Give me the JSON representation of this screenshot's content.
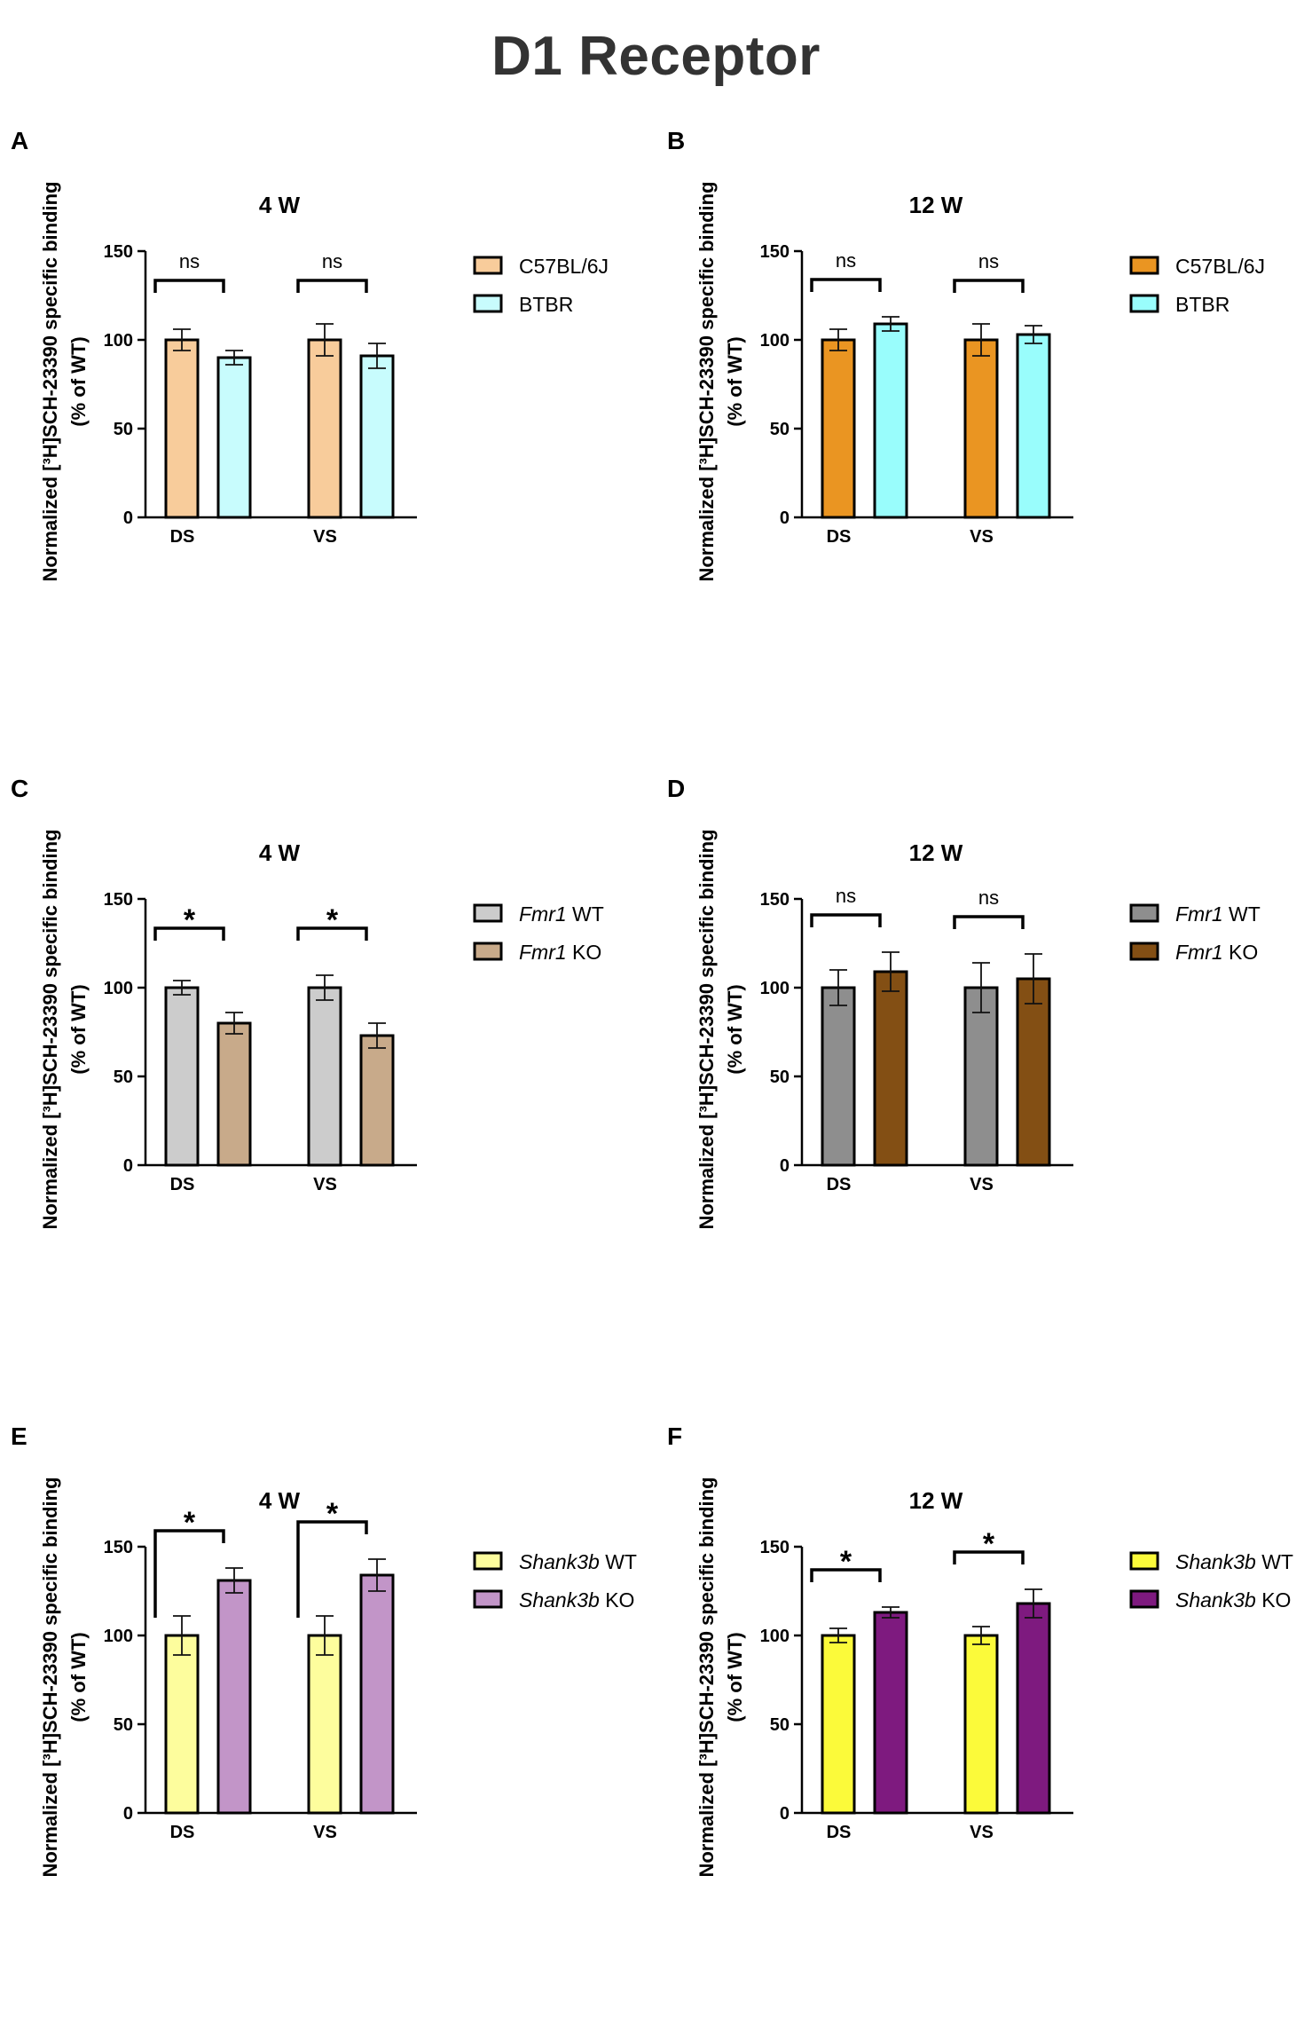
{
  "title": "D1 Receptor",
  "shared": {
    "ylabel_line1": "Normalized [³H]SCH-23390 specific binding",
    "ylabel_line2": "(% of WT)"
  },
  "colors": {
    "axis": "#000000",
    "A_wt": "#f8cc9b",
    "A_ko": "#c8fcfd",
    "B_wt": "#ea9522",
    "B_ko": "#99fdfc",
    "C_wt": "#cccccc",
    "C_ko": "#c8aa8a",
    "D_wt": "#8e8e8e",
    "D_ko": "#834f14",
    "E_wt": "#fdfd9d",
    "E_ko": "#c295c8",
    "F_wt": "#fbfa3a",
    "F_ko": "#7e1a7f"
  },
  "chart_data": [
    {
      "panel": "A",
      "type": "bar",
      "title": "4 W",
      "categories": [
        "DS",
        "VS"
      ],
      "series": [
        {
          "name": "C57BL/6J",
          "values": [
            100,
            100
          ],
          "errors": [
            6,
            9
          ]
        },
        {
          "name": "BTBR",
          "values": [
            90,
            91
          ],
          "errors": [
            4,
            7
          ]
        }
      ],
      "significance": [
        "ns",
        "ns"
      ],
      "ylim": [
        0,
        150
      ],
      "yticks": [
        0,
        50,
        100,
        150
      ]
    },
    {
      "panel": "B",
      "type": "bar",
      "title": "12 W",
      "categories": [
        "DS",
        "VS"
      ],
      "series": [
        {
          "name": "C57BL/6J",
          "values": [
            100,
            100
          ],
          "errors": [
            6,
            9
          ]
        },
        {
          "name": "BTBR",
          "values": [
            109,
            103
          ],
          "errors": [
            4,
            5
          ]
        }
      ],
      "significance": [
        "ns",
        "ns"
      ],
      "ylim": [
        0,
        150
      ],
      "yticks": [
        0,
        50,
        100,
        150
      ]
    },
    {
      "panel": "C",
      "type": "bar",
      "title": "4 W",
      "categories": [
        "DS",
        "VS"
      ],
      "series": [
        {
          "name": "Fmr1 WT",
          "italic": "Fmr1",
          "rest": " WT",
          "values": [
            100,
            100
          ],
          "errors": [
            4,
            7
          ]
        },
        {
          "name": "Fmr1 KO",
          "italic": "Fmr1",
          "rest": " KO",
          "values": [
            80,
            73
          ],
          "errors": [
            6,
            7
          ]
        }
      ],
      "significance": [
        "*",
        "*"
      ],
      "ylim": [
        0,
        150
      ],
      "yticks": [
        0,
        50,
        100,
        150
      ]
    },
    {
      "panel": "D",
      "type": "bar",
      "title": "12 W",
      "categories": [
        "DS",
        "VS"
      ],
      "series": [
        {
          "name": "Fmr1 WT",
          "italic": "Fmr1",
          "rest": " WT",
          "values": [
            100,
            100
          ],
          "errors": [
            10,
            14
          ]
        },
        {
          "name": "Fmr1 KO",
          "italic": "Fmr1",
          "rest": " KO",
          "values": [
            109,
            105
          ],
          "errors": [
            11,
            14
          ]
        }
      ],
      "significance": [
        "ns",
        "ns"
      ],
      "ylim": [
        0,
        150
      ],
      "yticks": [
        0,
        50,
        100,
        150
      ]
    },
    {
      "panel": "E",
      "type": "bar",
      "title": "4 W",
      "categories": [
        "DS",
        "VS"
      ],
      "series": [
        {
          "name": "Shank3b WT",
          "italic": "Shank3b",
          "rest": " WT",
          "values": [
            100,
            100
          ],
          "errors": [
            11,
            11
          ]
        },
        {
          "name": "Shank3b KO",
          "italic": "Shank3b",
          "rest": " KO",
          "values": [
            131,
            134
          ],
          "errors": [
            7,
            9
          ]
        }
      ],
      "significance": [
        "*",
        "*"
      ],
      "ylim": [
        0,
        150
      ],
      "yticks": [
        0,
        50,
        100,
        150
      ]
    },
    {
      "panel": "F",
      "type": "bar",
      "title": "12 W",
      "categories": [
        "DS",
        "VS"
      ],
      "series": [
        {
          "name": "Shank3b WT",
          "italic": "Shank3b",
          "rest": " WT",
          "values": [
            100,
            100
          ],
          "errors": [
            4,
            5
          ]
        },
        {
          "name": "Shank3b KO",
          "italic": "Shank3b",
          "rest": " KO",
          "values": [
            113,
            118
          ],
          "errors": [
            3,
            8
          ]
        }
      ],
      "significance": [
        "*",
        "*"
      ],
      "ylim": [
        0,
        150
      ],
      "yticks": [
        0,
        50,
        100,
        150
      ]
    }
  ]
}
